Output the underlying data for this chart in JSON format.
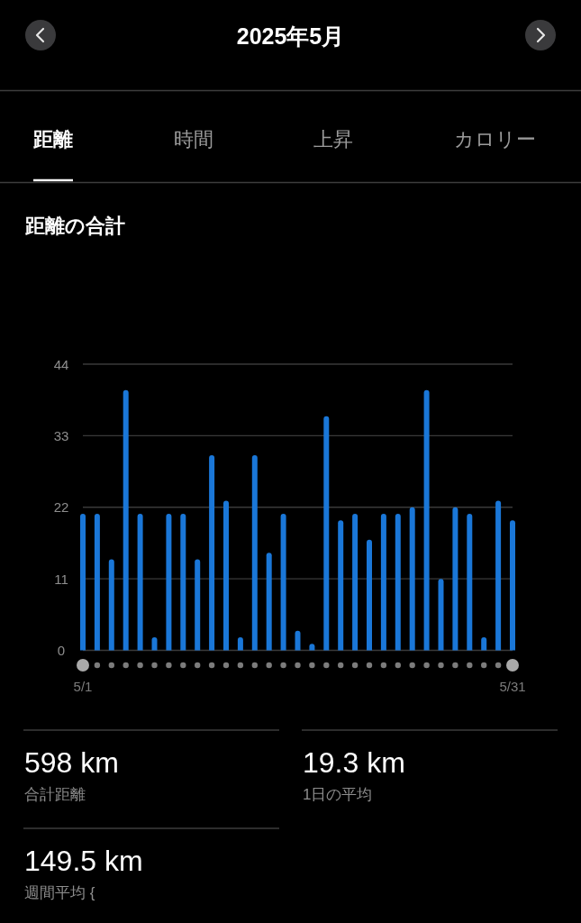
{
  "chart_data": [
    {
      "type": "other",
      "title": "2025年5月",
      "annotations": [
        "距離",
        "時間",
        "上昇",
        "カロリー"
      ]
    },
    {
      "type": "bar",
      "title": "距離の合計",
      "categories": [
        "5/1",
        null,
        null,
        null,
        null,
        null,
        null,
        null,
        null,
        null,
        null,
        null,
        null,
        null,
        null,
        null,
        null,
        null,
        null,
        null,
        null,
        null,
        null,
        null,
        null,
        null,
        null,
        null,
        null,
        null,
        "5/31"
      ],
      "values": [
        21,
        21,
        14,
        40,
        21,
        2,
        21,
        21,
        14,
        30,
        23,
        2,
        30,
        15,
        21,
        3,
        1,
        36,
        20,
        21,
        17,
        21,
        21,
        22,
        40,
        11,
        22,
        21,
        2,
        23,
        20
      ],
      "color": "#1a77d8",
      "ylim": [
        0,
        44
      ],
      "yticks": [
        0,
        11,
        22,
        33,
        44
      ],
      "grid": "y"
    },
    {
      "type": "other",
      "annotations": [
        "598 km",
        "合計距離",
        "19.3 km",
        "1日の平均",
        "149.5 km",
        "週間平均 {"
      ]
    }
  ]
}
